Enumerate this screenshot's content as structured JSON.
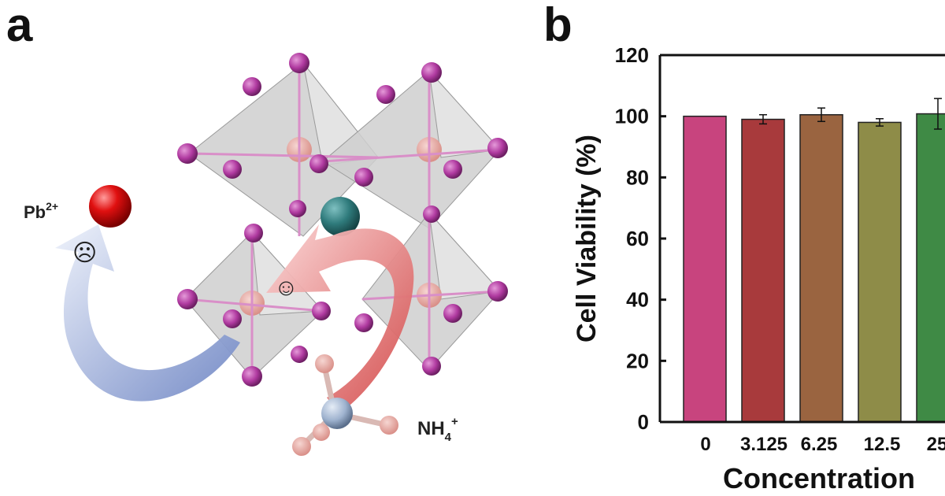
{
  "panel_a": {
    "letter": "a",
    "ion_left": {
      "base": "Pb",
      "sup": "2+"
    },
    "ion_right": {
      "base": "NH",
      "sub": "4",
      "sup": "+"
    },
    "sad_face": "☹",
    "happy_face": "☺",
    "colors": {
      "octahedron": "#c9c9c9",
      "halide": "#b03aa0",
      "lead": "#e6a8a0",
      "cation": "#2f7b7c",
      "pb_ion": "#e01010",
      "arrow_blue": "#8fa6d8",
      "arrow_red": "#e06a6a"
    }
  },
  "panel_b": {
    "letter": "b"
  },
  "chart_data": {
    "type": "bar",
    "title": "",
    "xlabel": "Concentration",
    "ylabel": "Cell Viability (%)",
    "categories": [
      "0",
      "3.125",
      "6.25",
      "12.5",
      "25"
    ],
    "values": [
      100,
      99,
      100.5,
      98,
      100.8
    ],
    "errors": [
      0,
      1.5,
      2.2,
      1.2,
      5.0
    ],
    "colors": [
      "#c8447e",
      "#a83a3c",
      "#9a6440",
      "#8e8c48",
      "#3f8a45"
    ],
    "ylim": [
      0,
      120
    ],
    "yticks": [
      "0",
      "20",
      "40",
      "60",
      "80",
      "100",
      "120"
    ],
    "grid": false
  }
}
